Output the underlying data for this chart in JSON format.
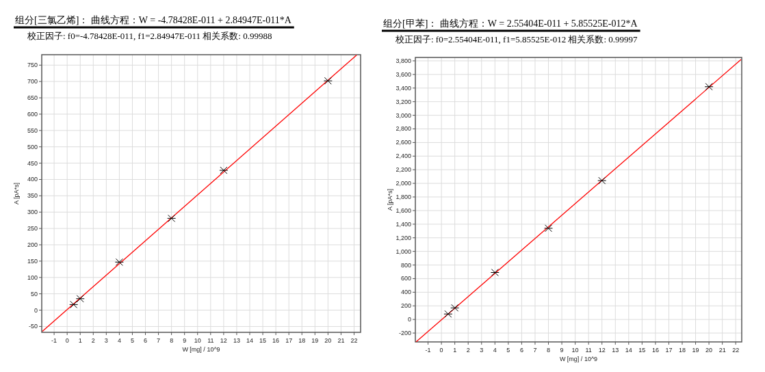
{
  "chart_data": [
    {
      "type": "scatter",
      "title": "组分[三氯乙烯]： 曲线方程：W = -4.78428E-011 + 2.84947E-011*A",
      "subtitle": "校正因子: f0=-4.78428E-011, f1=2.84947E-011  相关系数: 0.99988",
      "xlabel": "W [mg] / 10^9",
      "ylabel": "A [pA*s]",
      "grid": true,
      "marker": "cross",
      "xlim": [
        -1.95,
        22.5
      ],
      "ylim": [
        -68,
        782
      ],
      "xticks": [
        -1,
        0,
        1,
        2,
        3,
        4,
        5,
        6,
        7,
        8,
        9,
        10,
        11,
        12,
        13,
        14,
        15,
        16,
        17,
        18,
        19,
        20,
        21,
        22
      ],
      "yticks": [
        -50,
        0,
        50,
        100,
        150,
        200,
        250,
        300,
        350,
        400,
        450,
        500,
        550,
        600,
        650,
        700,
        750
      ],
      "series": [
        {
          "type": "line",
          "color": "#ff0000",
          "marker": "none",
          "x": [
            -1.9,
            22.2
          ],
          "values": [
            -65,
            781
          ]
        },
        {
          "type": "scatter",
          "color": "#000000",
          "x": [
            0.5,
            1,
            4,
            8,
            12,
            20
          ],
          "values": [
            17,
            35,
            147,
            281,
            428,
            702
          ]
        }
      ]
    },
    {
      "type": "scatter",
      "title": "组分[甲苯]： 曲线方程：W = 2.55404E-011 + 5.85525E-012*A",
      "subtitle": "校正因子: f0=2.55404E-011, f1=5.85525E-012  相关系数: 0.99997",
      "xlabel": "W [mg] / 10^9",
      "ylabel": "A [pA*s]",
      "grid": true,
      "marker": "cross",
      "xlim": [
        -1.95,
        22.45
      ],
      "ylim": [
        -330,
        3850
      ],
      "xticks": [
        -1,
        0,
        1,
        2,
        3,
        4,
        5,
        6,
        7,
        8,
        9,
        10,
        11,
        12,
        13,
        14,
        15,
        16,
        17,
        18,
        19,
        20,
        21,
        22
      ],
      "yticks": [
        -200,
        0,
        200,
        400,
        600,
        800,
        {
          "value": 1000,
          "label": "1,000"
        },
        {
          "value": 1200,
          "label": "1,200"
        },
        {
          "value": 1400,
          "label": "1,400"
        },
        {
          "value": 1600,
          "label": "1,600"
        },
        {
          "value": 1800,
          "label": "1,800"
        },
        {
          "value": 2000,
          "label": "2,000"
        },
        {
          "value": 2200,
          "label": "2,200"
        },
        {
          "value": 2400,
          "label": "2,400"
        },
        {
          "value": 2600,
          "label": "2,600"
        },
        {
          "value": 2800,
          "label": "2,800"
        },
        {
          "value": 3000,
          "label": "3,000"
        },
        {
          "value": 3200,
          "label": "3,200"
        },
        {
          "value": 3400,
          "label": "3,400"
        },
        {
          "value": 3600,
          "label": "3,600"
        },
        {
          "value": 3800,
          "label": "3,800"
        }
      ],
      "series": [
        {
          "type": "line",
          "color": "#ff0000",
          "marker": "none",
          "x": [
            -1.9,
            22.4
          ],
          "values": [
            -330,
            3820
          ]
        },
        {
          "type": "scatter",
          "color": "#000000",
          "x": [
            0.5,
            1,
            4,
            8,
            12,
            20
          ],
          "values": [
            80,
            170,
            690,
            1340,
            2040,
            3420
          ]
        }
      ]
    }
  ]
}
